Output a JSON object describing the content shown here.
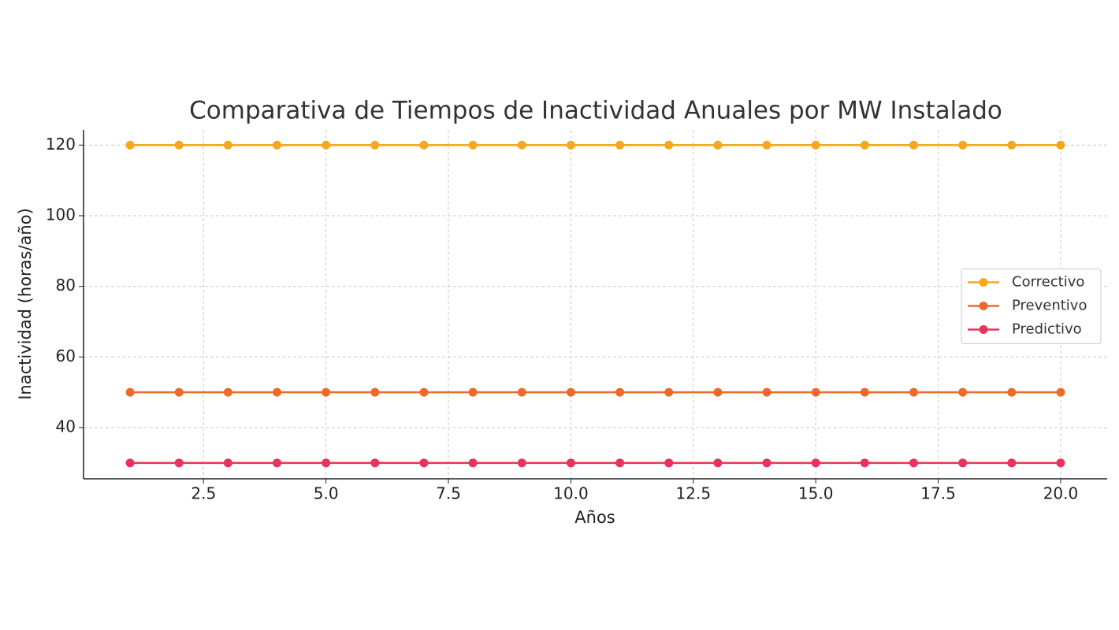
{
  "chart_data": {
    "type": "line",
    "title": "Comparativa de Tiempos de Inactividad Anuales por MW Instalado",
    "x_label": "Años",
    "y_label": "Inactividad (horas/año)",
    "x": [
      1,
      2,
      3,
      4,
      5,
      6,
      7,
      8,
      9,
      10,
      11,
      12,
      13,
      14,
      15,
      16,
      17,
      18,
      19,
      20
    ],
    "series": [
      {
        "name": "Correctivo",
        "color": "#f5a81c",
        "values": [
          120,
          120,
          120,
          120,
          120,
          120,
          120,
          120,
          120,
          120,
          120,
          120,
          120,
          120,
          120,
          120,
          120,
          120,
          120,
          120
        ]
      },
      {
        "name": "Preventivo",
        "color": "#ee6a2b",
        "values": [
          50,
          50,
          50,
          50,
          50,
          50,
          50,
          50,
          50,
          50,
          50,
          50,
          50,
          50,
          50,
          50,
          50,
          50,
          50,
          50
        ]
      },
      {
        "name": "Predictivo",
        "color": "#e8345a",
        "values": [
          30,
          30,
          30,
          30,
          30,
          30,
          30,
          30,
          30,
          30,
          30,
          30,
          30,
          30,
          30,
          30,
          30,
          30,
          30,
          30
        ]
      }
    ],
    "xlim": [
      0.05,
      20.95
    ],
    "xticks": [
      2.5,
      {
        "value": 5,
        "label": "5.0"
      },
      7.5,
      {
        "value": 10,
        "label": "10.0"
      },
      12.5,
      {
        "value": 15,
        "label": "15.0"
      },
      17.5,
      {
        "value": 20,
        "label": "20.0"
      }
    ],
    "ylim": [
      25.5,
      124.3
    ],
    "yticks": [
      40,
      60,
      80,
      100,
      120
    ],
    "grid": true,
    "legend": "right"
  }
}
